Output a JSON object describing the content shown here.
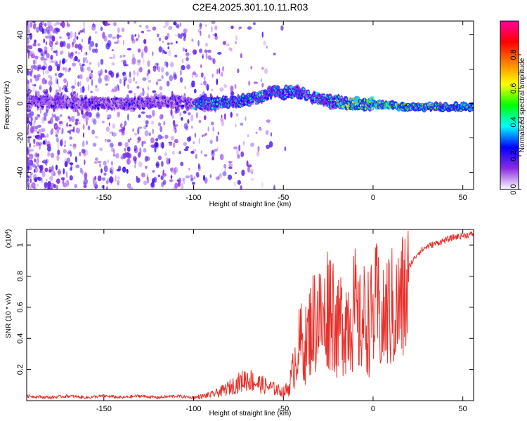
{
  "title": "C2E4.2025.301.10.11.R03",
  "chart_data": [
    {
      "type": "heatmap",
      "title": "C2E4.2025.301.10.11.R03",
      "xlabel": "Height of straight line (km)",
      "ylabel": "Frequency (Hz)",
      "xlim": [
        -193,
        56
      ],
      "ylim": [
        -50,
        48
      ],
      "x_ticks": [
        -150,
        -100,
        -50,
        0,
        50
      ],
      "y_ticks": [
        -40,
        -20,
        0,
        20,
        40
      ],
      "x_tick_labels": [
        "-150",
        "-100",
        "-50",
        "0",
        "50"
      ],
      "y_tick_labels": [
        "-40",
        "-20",
        "0",
        "20",
        "40"
      ],
      "ridge": {
        "x": [
          -193,
          -170,
          -150,
          -130,
          -110,
          -100,
          -90,
          -80,
          -70,
          -60,
          -55,
          -50,
          -45,
          -40,
          -35,
          -30,
          -25,
          -20,
          -15,
          -10,
          -5,
          0,
          5,
          10,
          20,
          30,
          40,
          56
        ],
        "frequency": [
          1,
          1,
          0,
          0,
          1,
          0,
          0,
          1,
          2,
          5,
          7,
          6,
          7,
          6,
          4,
          3,
          1,
          1,
          0,
          0,
          -1,
          0,
          -1,
          -1,
          -2,
          -2,
          -2,
          -2
        ]
      },
      "colorbar": {
        "label": "Normalized spectral amplitude",
        "range": [
          0.0,
          1.0
        ],
        "ticks": [
          0.0,
          0.2,
          0.4,
          0.6,
          0.8
        ],
        "tick_labels": [
          "0.0",
          "0.2",
          "0.4",
          "0.6",
          "0.8"
        ],
        "colormap": [
          "#ffffff",
          "#8a2be2",
          "#0000ff",
          "#00ffff",
          "#00ff00",
          "#ffff00",
          "#ff8000",
          "#ff0000",
          "#ff00a0"
        ]
      }
    },
    {
      "type": "line",
      "xlabel": "Height of straight line (km)",
      "ylabel": "SNR (10 * v/v)",
      "y_scale_note": "(x10",
      "y_scale_exp": "4",
      "y_scale_close": ")",
      "xlim": [
        -193,
        56
      ],
      "ylim": [
        0,
        1.1
      ],
      "x_ticks": [
        -150,
        -100,
        -50,
        0,
        50
      ],
      "y_ticks": [
        0.2,
        0.4,
        0.6,
        0.8,
        1.0
      ],
      "x_tick_labels": [
        "-150",
        "-100",
        "-50",
        "0",
        "50"
      ],
      "y_tick_labels": [
        "0.2",
        "0.4",
        "0.6",
        "0.8",
        "1"
      ],
      "color": "#e8302a",
      "series": [
        {
          "name": "SNR",
          "x": [
            -193,
            -180,
            -170,
            -160,
            -150,
            -140,
            -130,
            -120,
            -110,
            -100,
            -95,
            -90,
            -85,
            -80,
            -75,
            -70,
            -65,
            -60,
            -55,
            -50,
            -47,
            -45,
            -43,
            -40,
            -38,
            -35,
            -33,
            -30,
            -28,
            -25,
            -22,
            -20,
            -18,
            -15,
            -12,
            -10,
            -8,
            -5,
            -3,
            0,
            2,
            5,
            8,
            10,
            12,
            15,
            18,
            20,
            25,
            30,
            35,
            40,
            45,
            50,
            56
          ],
          "values": [
            0.03,
            0.02,
            0.03,
            0.02,
            0.03,
            0.02,
            0.03,
            0.02,
            0.03,
            0.02,
            0.03,
            0.04,
            0.06,
            0.09,
            0.12,
            0.15,
            0.12,
            0.1,
            0.08,
            0.06,
            0.1,
            0.2,
            0.35,
            0.45,
            0.4,
            0.55,
            0.6,
            0.65,
            0.55,
            0.75,
            0.7,
            0.5,
            0.6,
            0.62,
            0.65,
            0.68,
            0.55,
            0.62,
            0.6,
            0.62,
            0.72,
            0.55,
            0.68,
            0.7,
            0.65,
            0.72,
            0.8,
            0.86,
            0.95,
            0.99,
            1.01,
            1.03,
            1.05,
            1.06,
            1.07
          ]
        }
      ]
    }
  ]
}
